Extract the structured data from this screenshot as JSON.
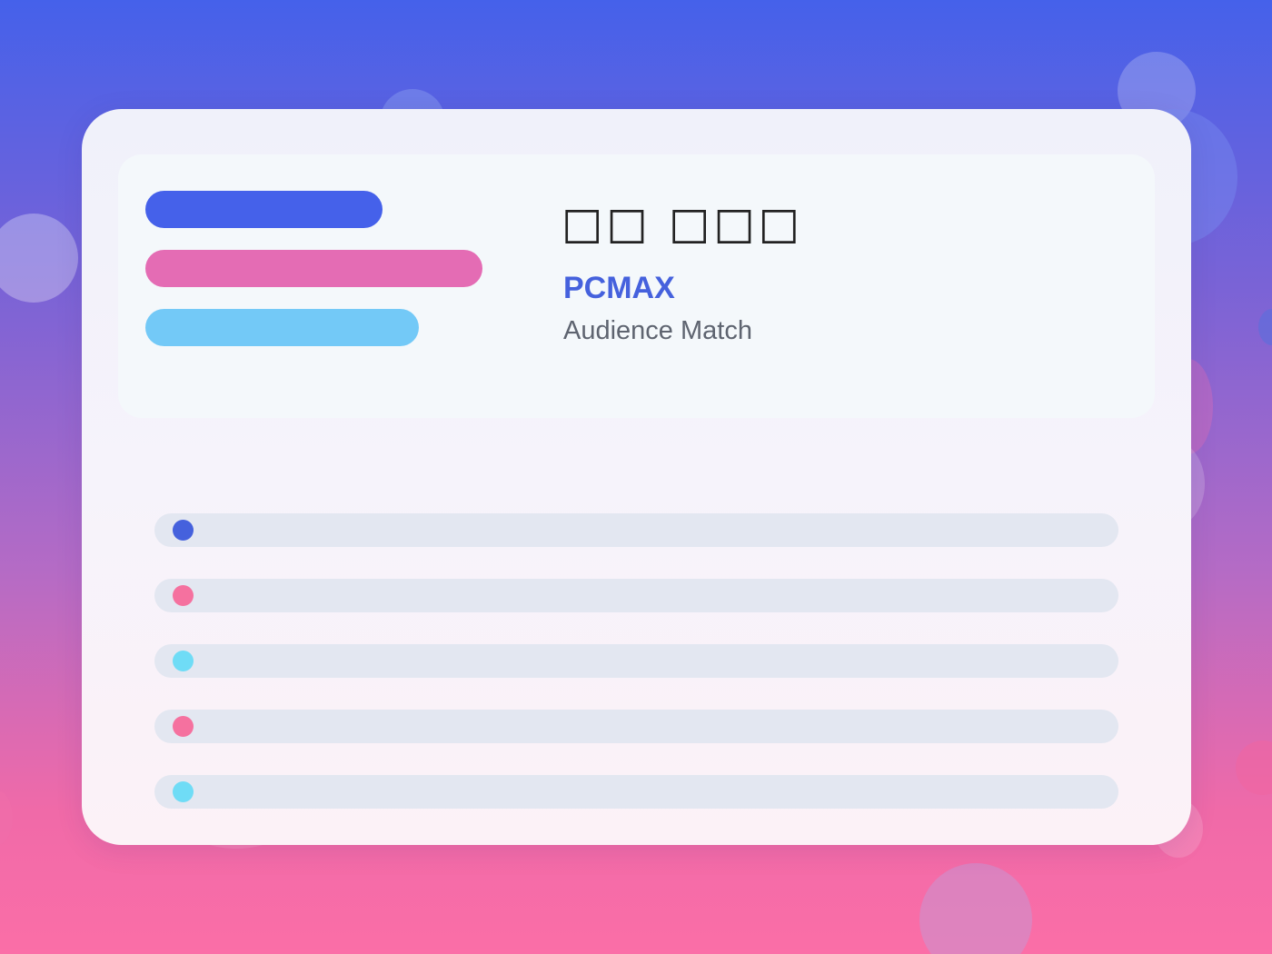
{
  "colors": {
    "primary": "#4561ea",
    "pink": "#e46cb4",
    "sky": "#73c9f7",
    "dot_blue": "#4561dd",
    "dot_pink": "#f5719f",
    "dot_cyan": "#6fdcf6"
  },
  "header": {
    "title": "□□ □□□",
    "brand": "PCMAX",
    "subtitle": "Audience Match",
    "bars": [
      {
        "color": "#4561ea"
      },
      {
        "color": "#e46cb4"
      },
      {
        "color": "#73c9f7"
      }
    ]
  },
  "list": {
    "rows": [
      {
        "dot_color": "#4561dd"
      },
      {
        "dot_color": "#f5719f"
      },
      {
        "dot_color": "#6fdcf6"
      },
      {
        "dot_color": "#f5719f"
      },
      {
        "dot_color": "#6fdcf6"
      }
    ]
  }
}
